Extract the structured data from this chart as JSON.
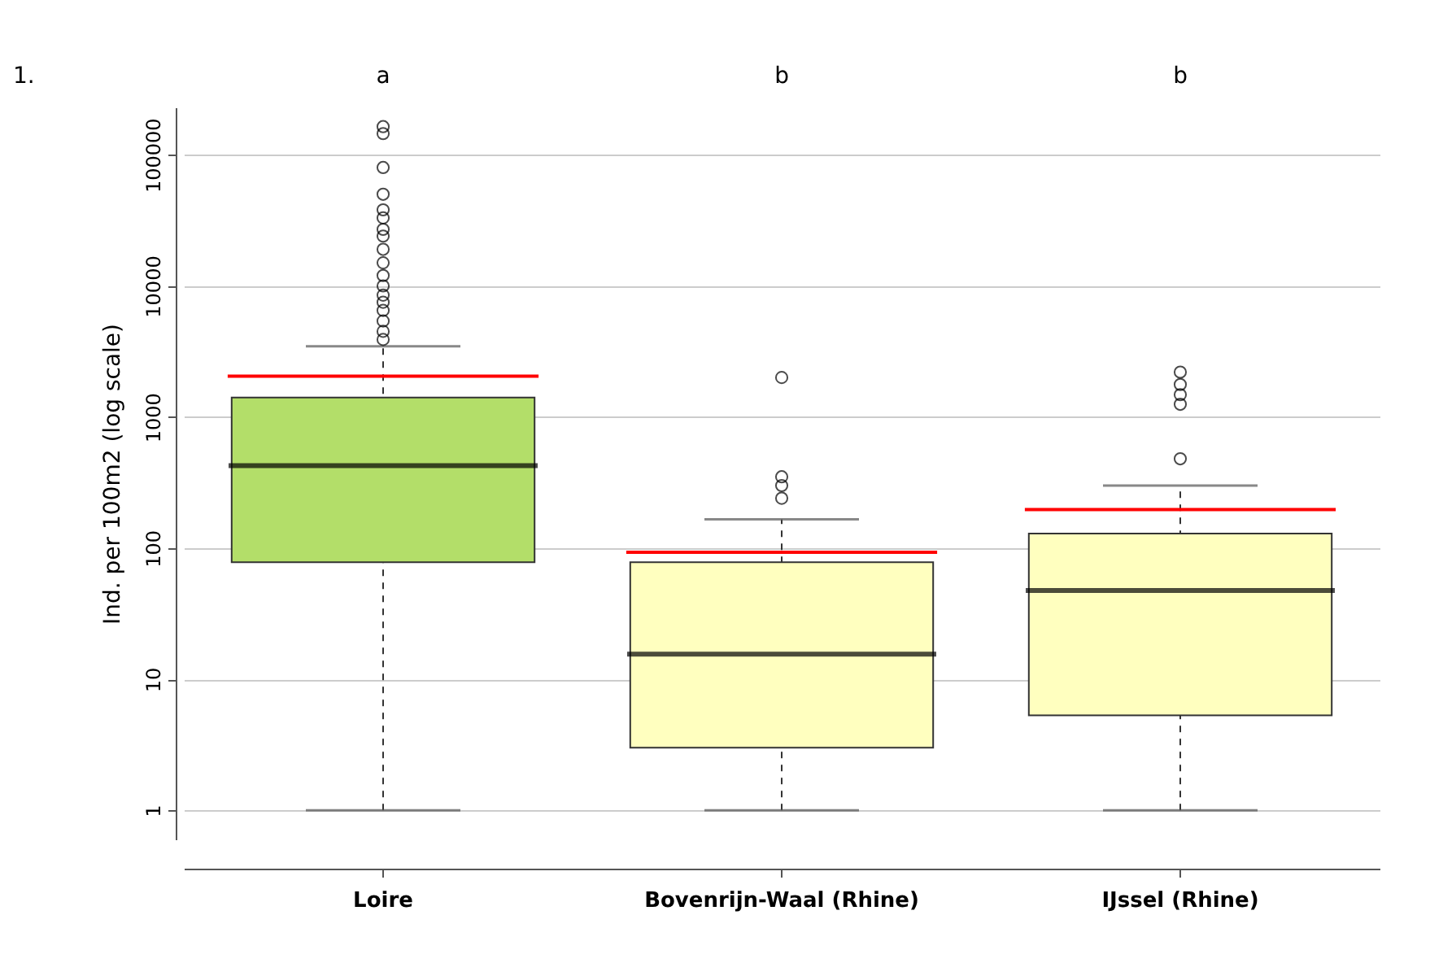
{
  "chart_data": {
    "type": "box",
    "ylabel": "Ind. per 100m2 (log scale)",
    "categories": [
      "Loire",
      "Bovenrijn-Waal (Rhine)",
      "IJssel (Rhine)"
    ],
    "colors": [
      "#b3de69",
      "#ffffbf",
      "#ffffbf"
    ],
    "boxes": [
      {
        "low": 1,
        "q1": 78,
        "median": 426,
        "q3": 1410,
        "high": 3460,
        "mean": 2050,
        "outliers": [
          3900,
          4500,
          5400,
          6500,
          7500,
          8500,
          10000,
          12000,
          15000,
          19000,
          24000,
          27000,
          33000,
          38000,
          50000,
          80000,
          145000,
          164000
        ]
      },
      {
        "low": 1,
        "q1": 3,
        "median": 15.5,
        "q3": 78,
        "high": 166,
        "mean": 93,
        "outliers": [
          240,
          300,
          350,
          2000
        ]
      },
      {
        "low": 1,
        "q1": 5.3,
        "median": 47.5,
        "q3": 129,
        "high": 300,
        "mean": 197,
        "outliers": [
          480,
          1250,
          1480,
          1770,
          2200
        ]
      }
    ],
    "log": true,
    "ylim": [
      0.6,
      230000
    ],
    "yticks": [
      1,
      10,
      100,
      1000,
      10000,
      100000
    ],
    "grid": "y",
    "annotations": [
      "1.",
      "a",
      "b",
      "b"
    ]
  }
}
